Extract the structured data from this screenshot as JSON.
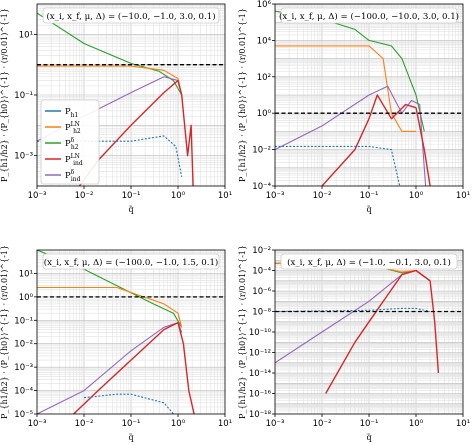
{
  "figure": {
    "xlabel": "q̃",
    "ylabel": "P_{h1/h2} · ⟨P_{h0}⟩^{-1} · (r/0.01)^{-1}"
  },
  "legend": {
    "entries": [
      {
        "label": "P",
        "sub": "h1",
        "sup": "",
        "color": "#1f77b4",
        "style": "solid"
      },
      {
        "label": "P",
        "sub": "h2",
        "sup": "LN",
        "color": "#ff7f0e",
        "style": "solid"
      },
      {
        "label": "P",
        "sub": "h2",
        "sup": "δ",
        "color": "#2ca02c",
        "style": "solid"
      },
      {
        "label": "P",
        "sub": "ind",
        "sup": "LN",
        "color": "#d62728",
        "style": "solid"
      },
      {
        "label": "P",
        "sub": "ind",
        "sup": "δ",
        "color": "#9467bd",
        "style": "solid"
      }
    ]
  },
  "colors": {
    "h1": "#1f77b4",
    "h2LN": "#ff7f0e",
    "h2delta": "#2ca02c",
    "indLN": "#d62728",
    "inddelta": "#9467bd",
    "reference": "#000000",
    "grid": "#d0d0d0"
  },
  "chart_data": [
    {
      "type": "line",
      "scale": "log-log",
      "annotation": "(x_i, x_f, μ, Δ) = (−10.0, −1.0, 3.0, 0.1)",
      "xlim": [
        0.001,
        10
      ],
      "ylim": [
        0.0001,
        100
      ],
      "xticks": [
        "10⁻³",
        "10⁻²",
        "10⁻¹",
        "10⁰",
        "10¹"
      ],
      "yticks": [
        "10⁻³",
        "10⁻¹",
        "10¹"
      ],
      "reference_line": 1,
      "series": [
        {
          "name": "P_h2^δ",
          "x": [
            0.001,
            0.01,
            0.1,
            0.4,
            0.8,
            1.2
          ],
          "y": [
            50,
            5,
            1.1,
            0.6,
            0.3,
            0.1
          ]
        },
        {
          "name": "P_h2^LN",
          "x": [
            0.001,
            0.1,
            0.5,
            1.0,
            1.2
          ],
          "y": [
            0.9,
            0.9,
            0.65,
            0.35,
            0.1
          ]
        },
        {
          "name": "P_ind^δ",
          "x": [
            0.001,
            0.01,
            0.1,
            0.5,
            1.0,
            1.2
          ],
          "y": [
            0.003,
            0.02,
            0.12,
            0.4,
            0.3,
            0.1
          ]
        },
        {
          "name": "P_ind^LN",
          "x": [
            0.008,
            0.02,
            0.1,
            0.5,
            1.0,
            1.2,
            1.6,
            1.9,
            2.1
          ],
          "y": [
            0.0001,
            0.0007,
            0.01,
            0.12,
            0.3,
            0.1,
            0.001,
            0.01,
            0.0001
          ]
        },
        {
          "name": "P_h1",
          "x": [
            0.001,
            0.1,
            0.5,
            0.9,
            1.2
          ],
          "y": [
            0.003,
            0.003,
            0.0045,
            0.002,
            0.0002
          ]
        }
      ]
    },
    {
      "type": "line",
      "scale": "log-log",
      "annotation": "(x_i, x_f, μ, Δ) = (−100.0, −10.0, 3.0, 0.1)",
      "xlim": [
        0.001,
        10
      ],
      "ylim": [
        0.0001,
        1000000
      ],
      "xticks": [
        "10⁻³",
        "10⁻²",
        "10⁻¹",
        "10⁰",
        "10¹"
      ],
      "yticks": [
        "10⁻⁴",
        "10⁻²",
        "10⁰",
        "10²",
        "10⁴",
        "10⁶"
      ],
      "reference_line": 1,
      "series": [
        {
          "name": "P_h2^δ",
          "x": [
            0.001,
            0.01,
            0.05,
            0.1,
            0.3,
            0.5,
            1.0,
            1.5
          ],
          "y": [
            400000,
            150000,
            40000,
            10000,
            5000,
            1000,
            10,
            0.1
          ]
        },
        {
          "name": "P_h2^LN",
          "x": [
            0.001,
            0.1,
            0.2,
            0.3,
            0.5,
            1.0
          ],
          "y": [
            5000,
            5000,
            1000,
            1,
            0.1,
            0.1
          ]
        },
        {
          "name": "P_ind^δ",
          "x": [
            0.001,
            0.01,
            0.1,
            0.25,
            0.5,
            0.8,
            1.2,
            1.6
          ],
          "y": [
            0.01,
            0.2,
            10,
            30,
            1,
            5,
            3,
            0.0001
          ]
        },
        {
          "name": "P_ind^LN",
          "x": [
            0.01,
            0.05,
            0.1,
            0.15,
            0.3,
            0.6,
            1.0,
            1.5,
            2.0
          ],
          "y": [
            0.0001,
            0.01,
            0.5,
            10,
            0.5,
            3,
            2,
            0.01,
            0.0001
          ]
        },
        {
          "name": "P_h1",
          "x": [
            0.001,
            0.1,
            0.3,
            0.45
          ],
          "y": [
            0.015,
            0.015,
            0.01,
            0.0001
          ]
        }
      ]
    },
    {
      "type": "line",
      "scale": "log-log",
      "annotation": "(x_i, x_f, μ, Δ) = (−100.0, −1.0, 1.5, 0.1)",
      "xlim": [
        0.001,
        10
      ],
      "ylim": [
        1e-05,
        100
      ],
      "xticks": [
        "10⁻³",
        "10⁻²",
        "10⁻¹",
        "10⁰",
        "10¹"
      ],
      "yticks": [
        "10⁻⁵",
        "10⁻⁴",
        "10⁻³",
        "10⁻²",
        "10⁻¹",
        "10⁰",
        "10¹"
      ],
      "reference_line": 1,
      "series": [
        {
          "name": "P_h2^δ",
          "x": [
            0.001,
            0.01,
            0.1,
            0.3,
            0.8,
            1.2
          ],
          "y": [
            100,
            15,
            1.5,
            0.5,
            0.2,
            0.05
          ]
        },
        {
          "name": "P_h2^LN",
          "x": [
            0.001,
            0.05,
            0.5,
            1.0,
            1.2
          ],
          "y": [
            2.5,
            2.5,
            0.5,
            0.2,
            0.05
          ]
        },
        {
          "name": "P_ind^δ",
          "x": [
            0.001,
            0.01,
            0.1,
            0.5,
            1.0,
            1.2
          ],
          "y": [
            1e-05,
            0.0001,
            0.005,
            0.05,
            0.08,
            0.03
          ]
        },
        {
          "name": "P_ind^LN",
          "x": [
            0.006,
            0.02,
            0.1,
            0.5,
            1.0,
            1.3,
            1.7,
            2.2
          ],
          "y": [
            1e-05,
            0.0001,
            0.002,
            0.04,
            0.08,
            0.01,
            0.0001,
            1e-05
          ]
        },
        {
          "name": "P_h1",
          "x": [
            0.01,
            0.05,
            0.1,
            0.5,
            0.8
          ],
          "y": [
            5e-05,
            7e-05,
            7e-05,
            3e-05,
            1e-05
          ]
        }
      ]
    },
    {
      "type": "line",
      "scale": "log-log",
      "annotation": "(x_i, x_f, μ, Δ) = (−1.0, −0.1, 3.0, 0.1)",
      "xlim": [
        0.001,
        10
      ],
      "ylim": [
        1e-18,
        0.01
      ],
      "xticks": [
        "10⁻³",
        "10⁻²",
        "10⁻¹",
        "10⁰",
        "10¹"
      ],
      "yticks": [
        "10⁻¹⁸",
        "10⁻¹⁶",
        "10⁻¹⁴",
        "10⁻¹²",
        "10⁻¹⁰",
        "10⁻⁸",
        "10⁻⁶",
        "10⁻⁴",
        "10⁻²"
      ],
      "reference_line": 1e-08,
      "series": [
        {
          "name": "P_h2^δ",
          "x": [
            0.001,
            0.01,
            0.1,
            0.5,
            1.0,
            2.0
          ],
          "y": [
            0.0005,
            0.0005,
            0.0004,
            6e-05,
            0.0001,
            1e-05
          ]
        },
        {
          "name": "P_h2^LN",
          "x": [
            0.001,
            0.1,
            0.5,
            1.0,
            2.0
          ],
          "y": [
            0.0005,
            0.0004,
            7e-05,
            0.0001,
            1e-05
          ]
        },
        {
          "name": "P_ind^δ",
          "x": [
            0.001,
            0.01,
            0.1,
            0.5,
            1.0,
            2.0
          ],
          "y": [
            1e-13,
            1e-10,
            1e-07,
            4e-05,
            0.0001,
            1e-05
          ]
        },
        {
          "name": "P_ind^LN",
          "x": [
            0.012,
            0.05,
            0.1,
            0.5,
            1.0,
            2.0,
            2.5,
            3.0
          ],
          "y": [
            1e-16,
            1e-11,
            1e-09,
            4e-05,
            0.0001,
            1e-05,
            1e-09,
            1e-14
          ]
        },
        {
          "name": "P_h1",
          "x": [
            0.001,
            0.1,
            0.5,
            1.0,
            2.0
          ],
          "y": [
            1e-08,
            1.3e-08,
            2e-08,
            2e-08,
            1e-08
          ]
        }
      ]
    }
  ]
}
